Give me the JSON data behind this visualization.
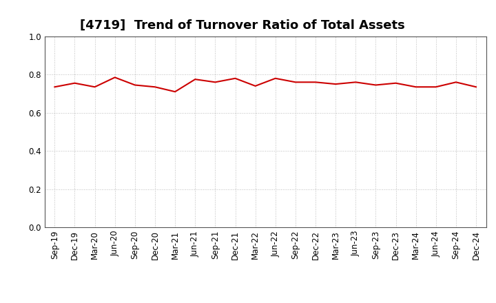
{
  "title": "[4719]  Trend of Turnover Ratio of Total Assets",
  "x_labels": [
    "Sep-19",
    "Dec-19",
    "Mar-20",
    "Jun-20",
    "Sep-20",
    "Dec-20",
    "Mar-21",
    "Jun-21",
    "Sep-21",
    "Dec-21",
    "Mar-22",
    "Jun-22",
    "Sep-22",
    "Dec-22",
    "Mar-23",
    "Jun-23",
    "Sep-23",
    "Dec-23",
    "Mar-24",
    "Jun-24",
    "Sep-24",
    "Dec-24"
  ],
  "values": [
    0.735,
    0.755,
    0.735,
    0.785,
    0.745,
    0.735,
    0.71,
    0.775,
    0.76,
    0.78,
    0.74,
    0.78,
    0.76,
    0.76,
    0.75,
    0.76,
    0.745,
    0.755,
    0.735,
    0.735,
    0.76,
    0.735
  ],
  "line_color": "#cc0000",
  "line_width": 1.5,
  "ylim": [
    0.0,
    1.0
  ],
  "yticks": [
    0.0,
    0.2,
    0.4,
    0.6,
    0.8,
    1.0
  ],
  "grid_color": "#bbbbbb",
  "background_color": "#ffffff",
  "title_fontsize": 13,
  "tick_fontsize": 8.5
}
